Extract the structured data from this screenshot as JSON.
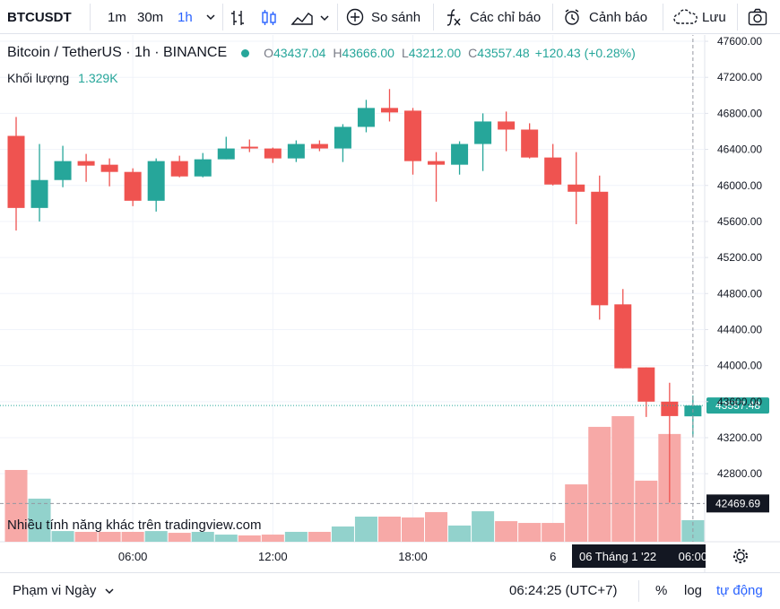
{
  "toolbar": {
    "symbol": "BTCUSDT",
    "intervals": [
      "1m",
      "30m",
      "1h"
    ],
    "compare": "So sánh",
    "indicators": "Các chỉ báo",
    "alerts": "Cảnh báo",
    "save": "Lưu"
  },
  "legend": {
    "title": "Bitcoin / TetherUS · 1h · BINANCE",
    "ohlc_labels": [
      "O",
      "H",
      "L",
      "C"
    ],
    "ohlc_values": [
      "43437.04",
      "43666.00",
      "43212.00",
      "43557.48"
    ],
    "change": "+120.43 (+0.28%)",
    "volume_label": "Khối lượng",
    "volume_value": "1.329K"
  },
  "watermark": "Nhiều tính năng khác trên tradingview.com",
  "chart_data": {
    "type": "candlestick",
    "categories": [
      null,
      null,
      null,
      null,
      null,
      "06:00",
      null,
      null,
      null,
      null,
      null,
      "12:00",
      null,
      null,
      null,
      null,
      null,
      "18:00",
      null,
      null,
      null,
      null,
      null,
      "6",
      null,
      null,
      null,
      null,
      null,
      null
    ],
    "open": [
      46550,
      45750,
      46060,
      46270,
      46230,
      46150,
      45830,
      46270,
      46100,
      46290,
      46430,
      46410,
      46300,
      46460,
      46410,
      46650,
      46860,
      46830,
      46270,
      46230,
      46460,
      46710,
      46620,
      46310,
      46010,
      45930,
      44680,
      43980,
      43600,
      43437.04
    ],
    "high": [
      46760,
      46460,
      46440,
      46350,
      46300,
      46190,
      46300,
      46330,
      46360,
      46540,
      46510,
      46420,
      46500,
      46500,
      46680,
      46950,
      47070,
      46860,
      46370,
      46490,
      46800,
      46820,
      46690,
      46460,
      46370,
      46110,
      44850,
      43980,
      43810,
      43666
    ],
    "low": [
      45500,
      45600,
      45980,
      46040,
      45990,
      45770,
      45710,
      46090,
      46090,
      46290,
      46370,
      46250,
      46260,
      46380,
      46260,
      46590,
      46710,
      46120,
      45820,
      46120,
      46160,
      46380,
      46300,
      46000,
      45570,
      44510,
      43970,
      43430,
      42480,
      43212
    ],
    "close": [
      45750,
      46060,
      46270,
      46220,
      46150,
      45830,
      46270,
      46100,
      46290,
      46410,
      46410,
      46300,
      46460,
      46410,
      46650,
      46860,
      46810,
      46270,
      46230,
      46460,
      46710,
      46620,
      46310,
      46010,
      45930,
      44670,
      43970,
      43600,
      43440,
      43557.48
    ],
    "volume": [
      4430,
      2660,
      660,
      610,
      610,
      610,
      660,
      550,
      610,
      440,
      390,
      440,
      610,
      610,
      940,
      1550,
      1550,
      1500,
      1830,
      1000,
      1880,
      1270,
      1160,
      1160,
      3540,
      7090,
      7750,
      3770,
      6650,
      1329
    ],
    "up_color": "#26a69a",
    "down_color": "#ef5350",
    "up_volume_color": "#92d2cc",
    "down_volume_color": "#f7a9a7",
    "ylim": [
      42045,
      47700
    ],
    "yticks": [
      {
        "value": 42800,
        "label": "42800.00"
      },
      {
        "value": 43200,
        "label": "43200.00"
      },
      {
        "value": 43600,
        "label": "43600.00"
      },
      {
        "value": 44000,
        "label": "44000.00"
      },
      {
        "value": 44400,
        "label": "44400.00"
      },
      {
        "value": 44800,
        "label": "44800.00"
      },
      {
        "value": 45200,
        "label": "45200.00"
      },
      {
        "value": 45600,
        "label": "45600.00"
      },
      {
        "value": 46000,
        "label": "46000.00"
      },
      {
        "value": 46400,
        "label": "46400.00"
      },
      {
        "value": 46800,
        "label": "46800.00"
      },
      {
        "value": 47200,
        "label": "47200.00"
      },
      {
        "value": 47600,
        "label": "47600.00"
      }
    ],
    "grid": true,
    "crosshair": {
      "price": 42469.69,
      "date": "06 Tháng 1 '22",
      "time": "06:00"
    }
  },
  "footer": {
    "range": "Phạm vi Ngày",
    "clock": "06:24:25 (UTC+7)",
    "percent": "%",
    "log": "log",
    "auto": "tự động"
  }
}
